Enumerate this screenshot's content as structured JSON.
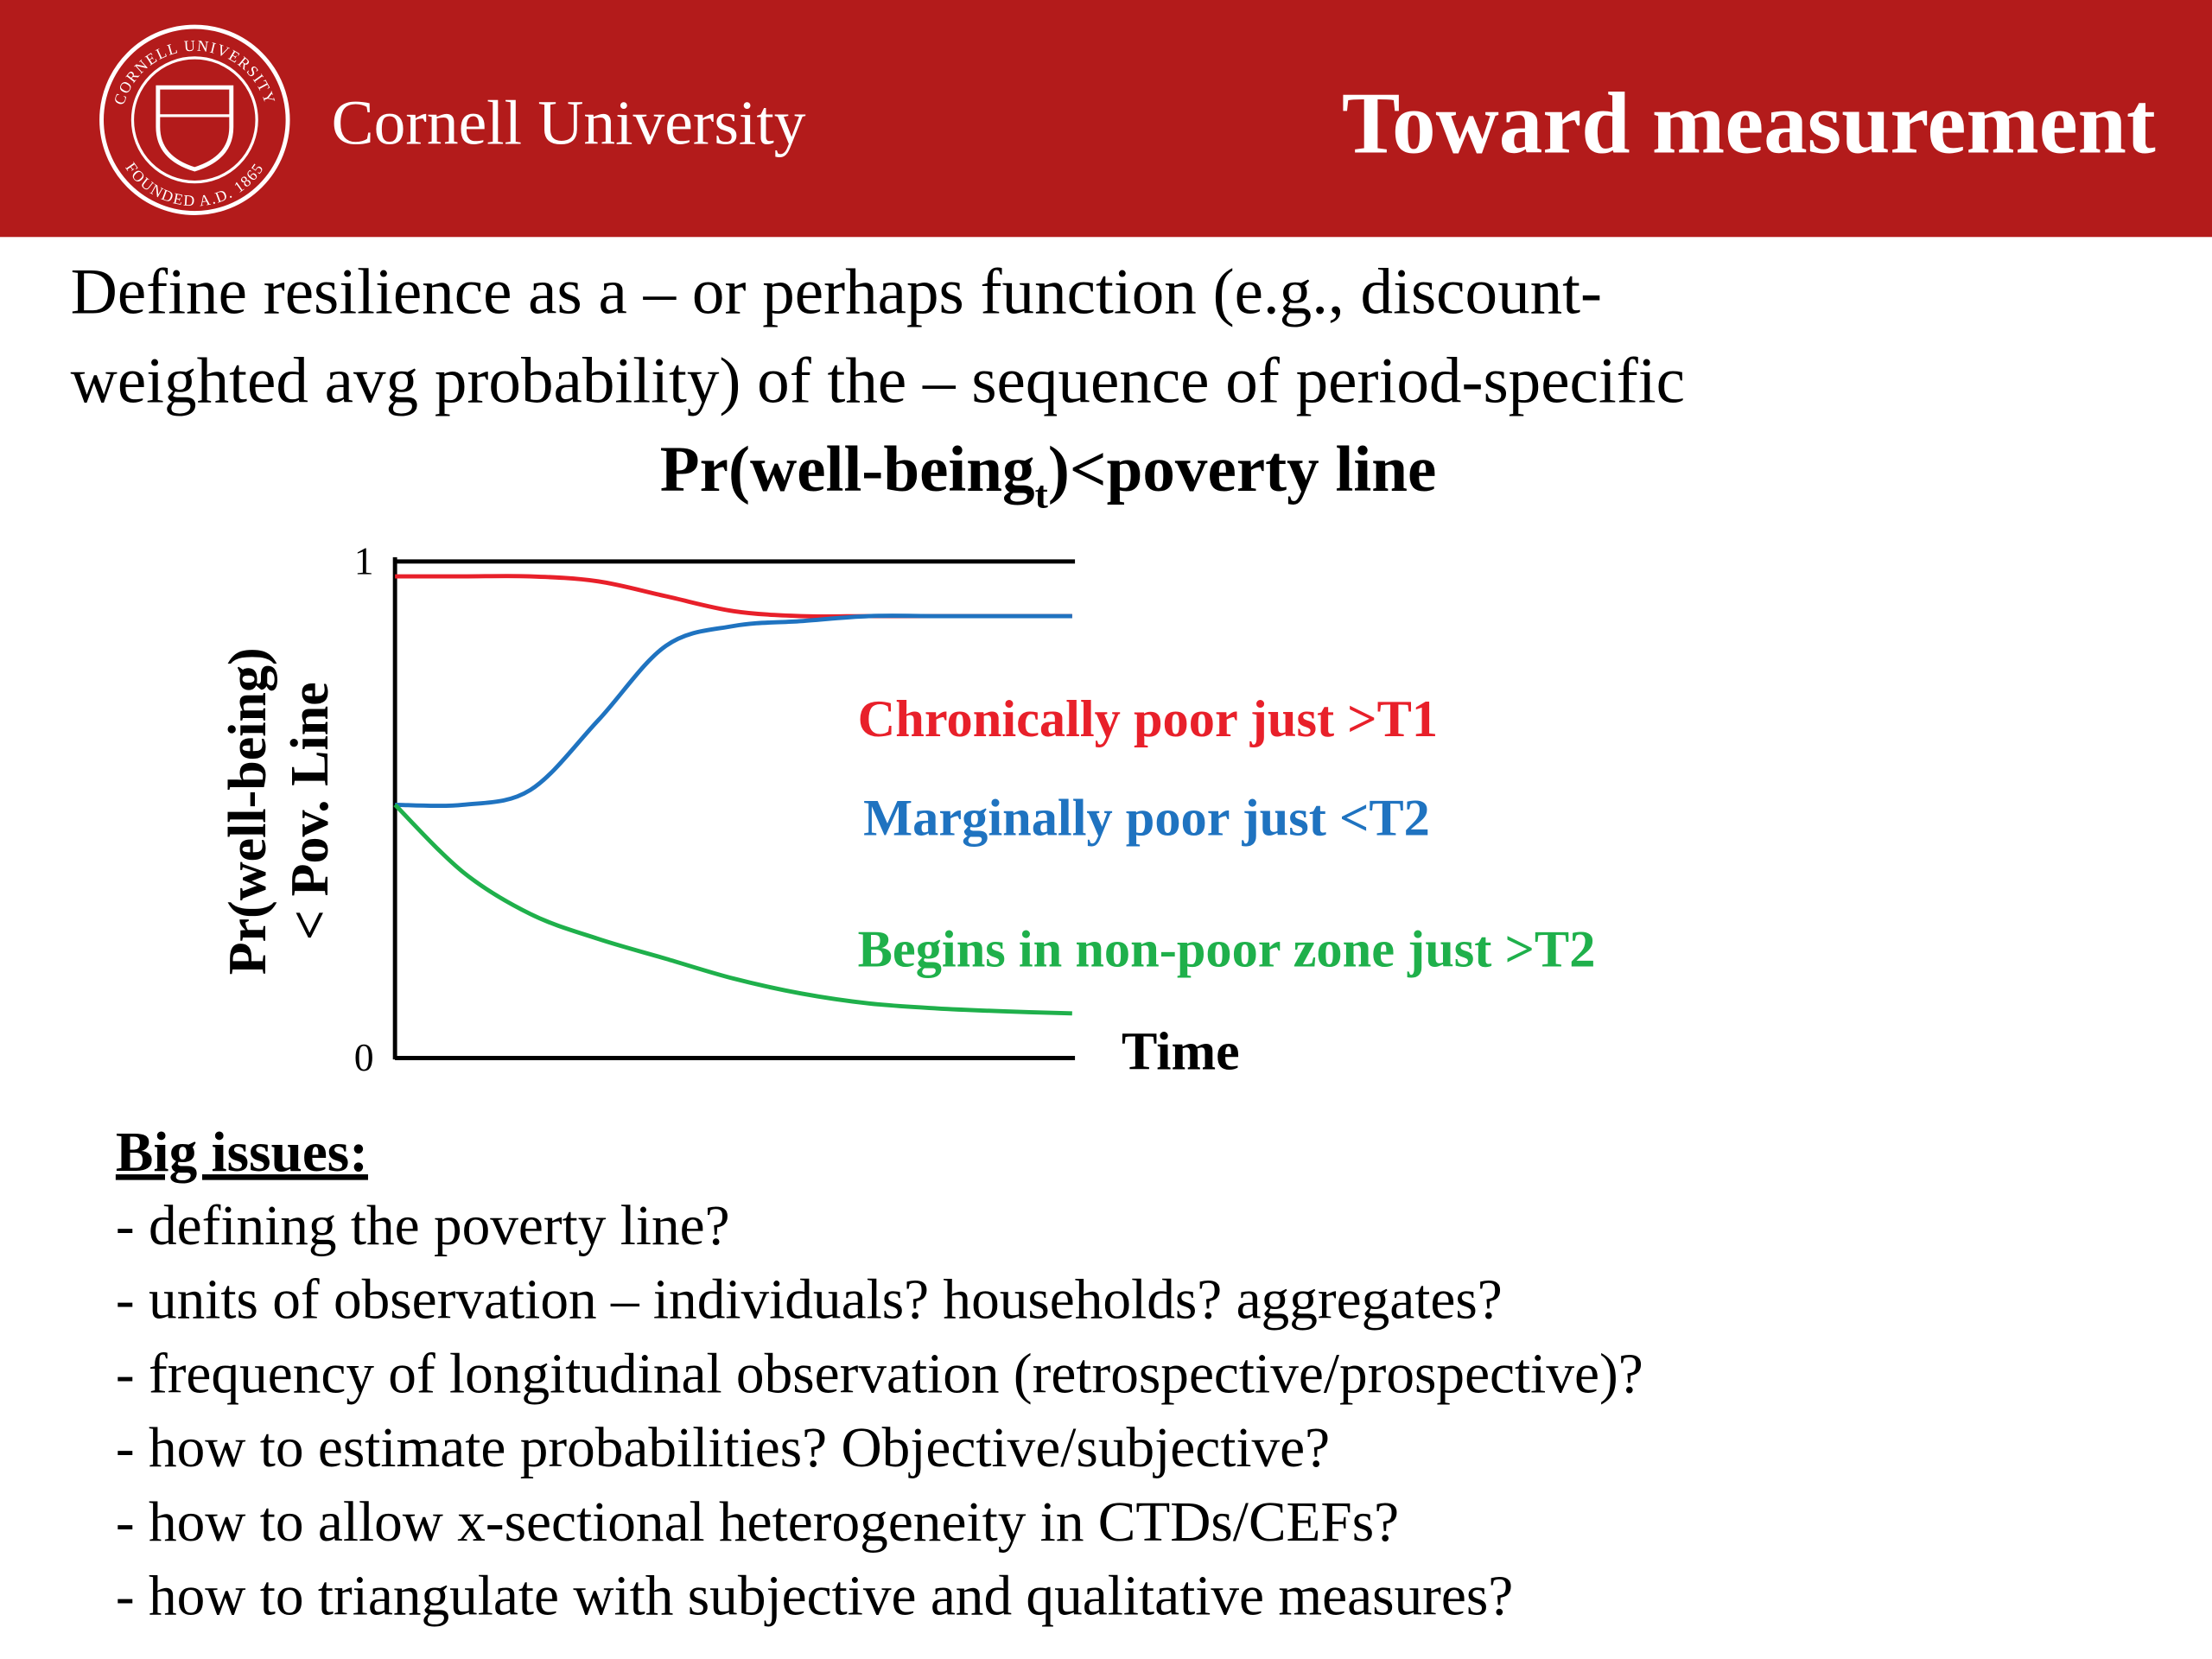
{
  "header": {
    "brand": "Cornell University",
    "title": "Toward measurement",
    "logo": {
      "ring_top": "CORNELL UNIVERSITY",
      "ring_bottom": "FOUNDED A.D. 1865"
    }
  },
  "intro": {
    "lines": [
      "Define resilience as a – or perhaps function (e.g., discount-",
      "weighted avg probability) of the – sequence of period-specific"
    ],
    "formula": {
      "pre": "Pr(well-being",
      "sub": "t",
      "post": ")<poverty line"
    }
  },
  "chart_data": {
    "type": "line",
    "ylabel": [
      "Pr(well-being)",
      "< Pov. Line"
    ],
    "xlabel": "Time",
    "categories": [
      null,
      null,
      null,
      null,
      null,
      null,
      null,
      null,
      null,
      null,
      null
    ],
    "ylim": [
      0,
      1
    ],
    "yticks": [
      0,
      1
    ],
    "grid": true,
    "series": [
      {
        "name": "Chronically poor just >T1",
        "color": "#e8202a",
        "values": [
          0.97,
          0.97,
          0.97,
          0.96,
          0.93,
          0.9,
          0.89,
          0.89,
          0.89,
          0.89,
          0.89
        ]
      },
      {
        "name": "Marginally poor just <T2",
        "color": "#1f73c0",
        "values": [
          0.51,
          0.51,
          0.54,
          0.68,
          0.83,
          0.87,
          0.88,
          0.89,
          0.89,
          0.89,
          0.89
        ]
      },
      {
        "name": "Begins in non-poor zone just >T2",
        "color": "#1fb04b",
        "values": [
          0.51,
          0.375,
          0.29,
          0.24,
          0.2,
          0.16,
          0.13,
          0.11,
          0.1,
          0.094,
          0.09
        ]
      }
    ]
  },
  "issues": {
    "heading": "Big issues:",
    "items": [
      "- defining the poverty line?",
      "- units of observation – individuals? households? aggregates?",
      "- frequency of longitudinal observation (retrospective/prospective)?",
      "- how to estimate probabilities? Objective/subjective?",
      "- how to allow x-sectional heterogeneity in CTDs/CEFs?",
      "- how to triangulate with subjective and qualitative measures?"
    ]
  }
}
